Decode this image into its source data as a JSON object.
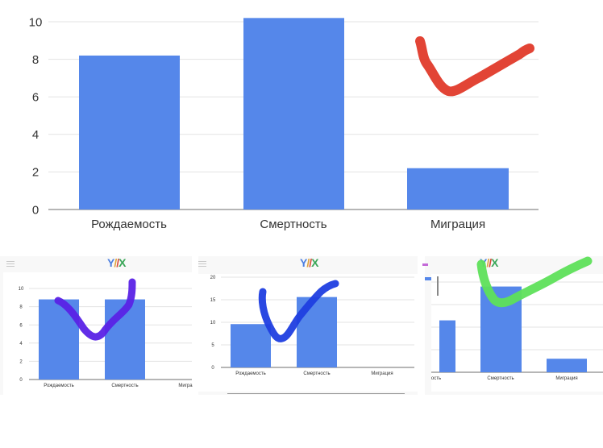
{
  "colors": {
    "bar": "#5587ea",
    "grid": "#e3e3e3",
    "axis": "#333333",
    "text": "#444444"
  },
  "chart_data": [
    {
      "type": "bar",
      "categories": [
        "Рождаемость",
        "Смертность",
        "Миграция"
      ],
      "values": [
        8.2,
        10.2,
        2.2
      ],
      "ylim": [
        0,
        10
      ],
      "yticks": [
        0,
        2,
        4,
        6,
        8,
        10
      ],
      "grid": true,
      "annotation": {
        "shape": "check-mark",
        "color": "#e03a2a"
      }
    },
    {
      "type": "bar",
      "categories": [
        "Рождаемость",
        "Смертность",
        "Мигра"
      ],
      "values": [
        8.8,
        8.8,
        0
      ],
      "ylim": [
        0,
        10
      ],
      "yticks": [
        0,
        2,
        4,
        6,
        8,
        10
      ],
      "grid": true,
      "annotation": {
        "shape": "check-mark",
        "color": "#5a22e6"
      }
    },
    {
      "type": "bar",
      "categories": [
        "Рождаемость",
        "Смертность",
        "Миграция"
      ],
      "values": [
        9.6,
        15.6,
        0
      ],
      "ylim": [
        0,
        20
      ],
      "yticks": [
        0,
        5,
        10,
        15,
        20
      ],
      "grid": true,
      "annotation": {
        "shape": "check-mark",
        "color": "#1f3ee0"
      }
    },
    {
      "type": "bar",
      "categories": [
        "ость",
        "Смертность",
        "Миграция"
      ],
      "values": [
        11.5,
        19,
        3
      ],
      "ylim": [
        0,
        20
      ],
      "grid": true,
      "annotation": {
        "shape": "check-mark",
        "color": "#5ee05a"
      }
    }
  ],
  "logo": {
    "glyph1": "Y",
    "glyph2": "/",
    "glyph3": "/",
    "glyph4": "X"
  }
}
